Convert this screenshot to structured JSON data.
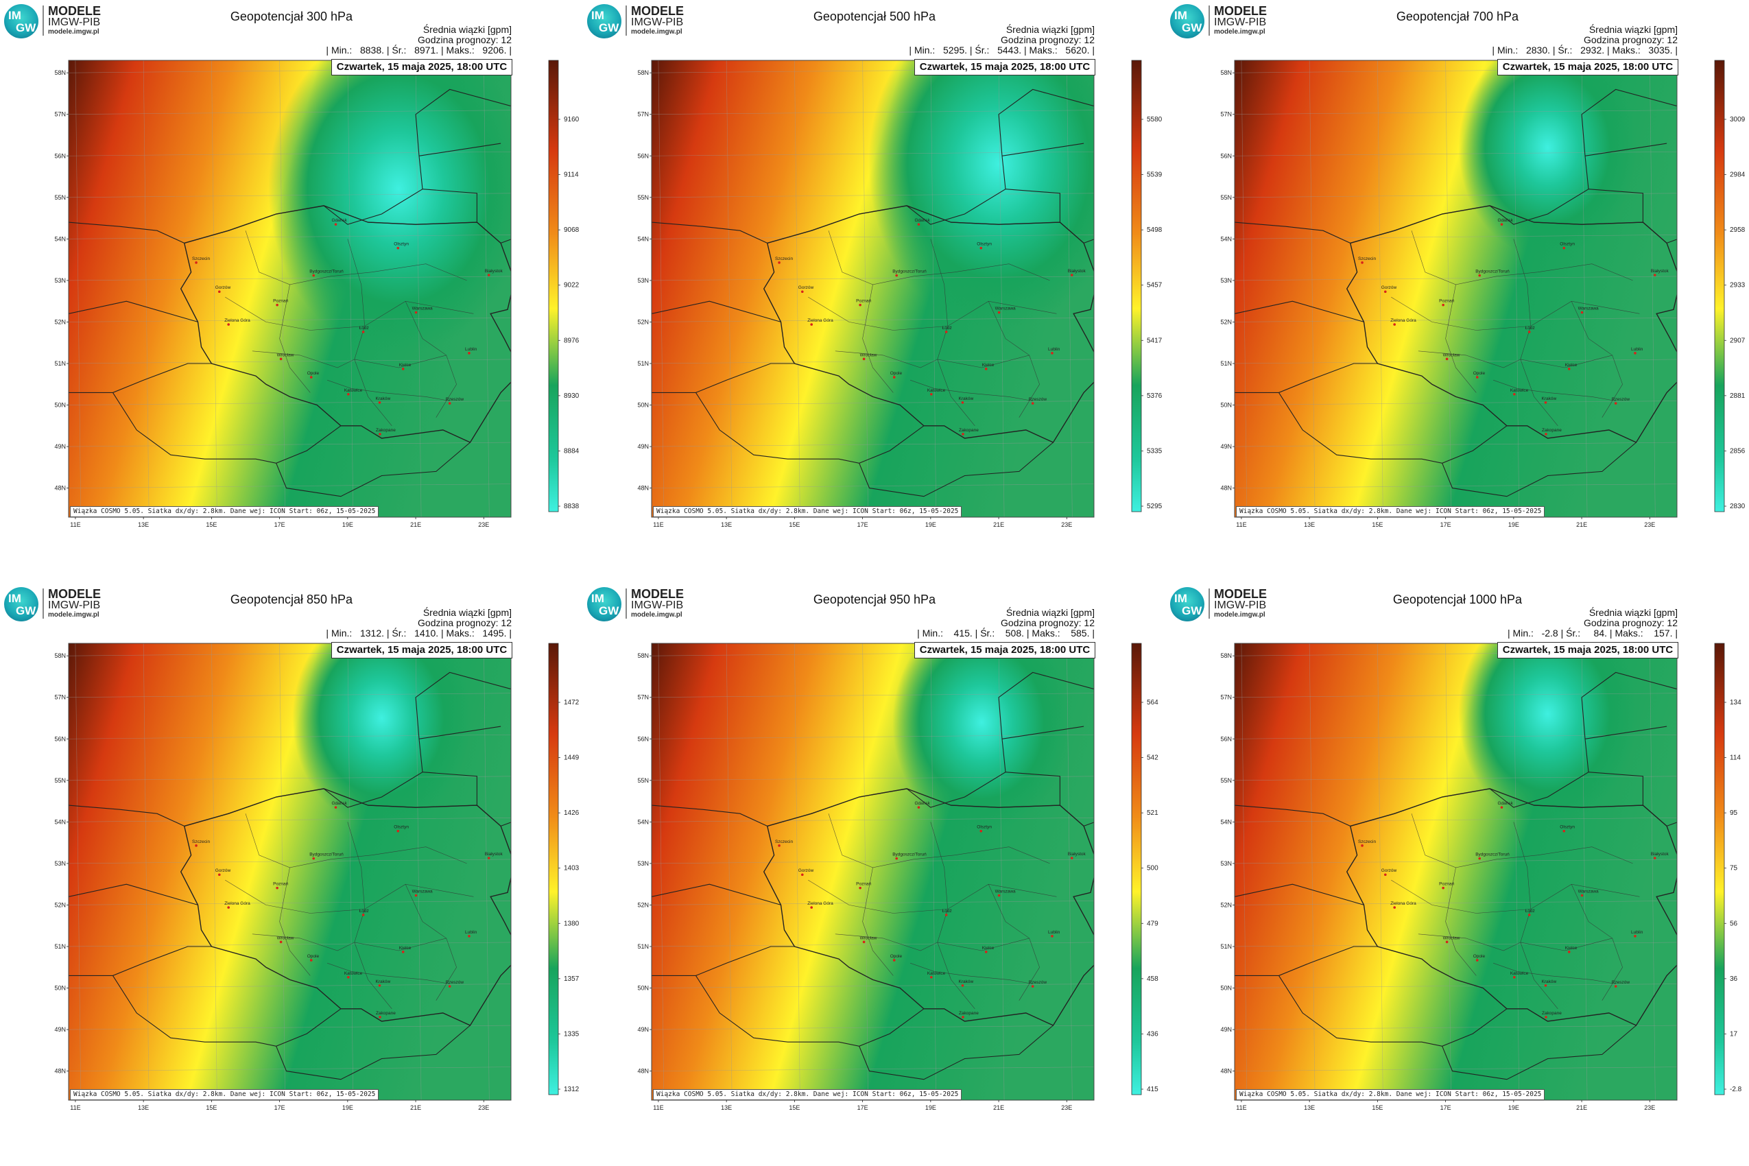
{
  "brand": {
    "name": "MODELE",
    "org": "IMGW-PIB",
    "url": "modele.imgw.pl",
    "logo_top": "IM",
    "logo_bottom": "GW"
  },
  "common": {
    "stat_title": "Średnia wiązki [gpm]",
    "forecast_hour": "Godzina prognozy: 12",
    "date": "Czwartek, 15 maja 2025, 18:00 UTC",
    "credit": "Wiązka COSMO 5.05. Siatka dx/dy: 2.8km. Dane wej: ICON Start: 06z, 15-05-2025"
  },
  "axes": {
    "lat_labels": [
      "58N",
      "57N",
      "56N",
      "55N",
      "54N",
      "53N",
      "52N",
      "51N",
      "50N",
      "49N",
      "48N"
    ],
    "lon_labels": [
      "11E",
      "13E",
      "15E",
      "17E",
      "19E",
      "21E",
      "23E"
    ]
  },
  "cities": [
    "Gdańsk",
    "Olsztyn",
    "Gorzów",
    "Białystok",
    "Szczecin",
    "Bydgoszcz/Toruń",
    "Poznań",
    "Warszawa",
    "Zielona Góra",
    "Łódź",
    "Lublin",
    "Wrocław",
    "Kielce",
    "Opole",
    "Katowice",
    "Kraków",
    "Rzeszów",
    "Zakopane"
  ],
  "colors": {
    "low": "#3ff0e0",
    "mid_green": "#18a45c",
    "yellow": "#fff22a",
    "orange": "#f08a18",
    "red": "#d63a10",
    "dark": "#5a1808",
    "border": "#222222",
    "contour": "#b8cc6a"
  },
  "panels": [
    {
      "title": "Geopotencjał 300 hPa",
      "stats": "| Min.:   8838. | Śr.:   8971. | Maks.:   9206. |",
      "colorbar": [
        "9160",
        "9114",
        "9068",
        "9022",
        "8976",
        "8930",
        "8884",
        "8838"
      ],
      "chart_data": {
        "type": "heatmap",
        "level_hPa": 300,
        "unit": "gpm",
        "min": 8838,
        "mean": 8971,
        "max": 9206,
        "low_center": {
          "lon": 20.5,
          "lat": 55.2
        }
      }
    },
    {
      "title": "Geopotencjał 500 hPa",
      "stats": "| Min.:   5295. | Śr.:   5443. | Maks.:   5620. |",
      "colorbar": [
        "5580",
        "5539",
        "5498",
        "5457",
        "5417",
        "5376",
        "5335",
        "5295"
      ],
      "chart_data": {
        "type": "heatmap",
        "level_hPa": 500,
        "unit": "gpm",
        "min": 5295,
        "mean": 5443,
        "max": 5620,
        "low_center": {
          "lon": 21.0,
          "lat": 55.8
        }
      }
    },
    {
      "title": "Geopotencjał 700 hPa",
      "stats": "| Min.:   2830. | Śr.:   2932. | Maks.:   3035. |",
      "colorbar": [
        "3009",
        "2984",
        "2958",
        "2933",
        "2907",
        "2881",
        "2856",
        "2830"
      ],
      "chart_data": {
        "type": "heatmap",
        "level_hPa": 700,
        "unit": "gpm",
        "min": 2830,
        "mean": 2932,
        "max": 3035,
        "low_center": {
          "lon": 20.0,
          "lat": 56.2
        }
      }
    },
    {
      "title": "Geopotencjał 850 hPa",
      "stats": "| Min.:   1312. | Śr.:   1410. | Maks.:   1495. |",
      "colorbar": [
        "1472",
        "1449",
        "1426",
        "1403",
        "1380",
        "1357",
        "1335",
        "1312"
      ],
      "chart_data": {
        "type": "heatmap",
        "level_hPa": 850,
        "unit": "gpm",
        "min": 1312,
        "mean": 1410,
        "max": 1495,
        "low_center": {
          "lon": 20.0,
          "lat": 56.5
        }
      }
    },
    {
      "title": "Geopotencjał 950 hPa",
      "stats": "| Min.:    415. | Śr.:    508. | Maks.:    585. |",
      "colorbar": [
        "564",
        "542",
        "521",
        "500",
        "479",
        "458",
        "436",
        "415"
      ],
      "chart_data": {
        "type": "heatmap",
        "level_hPa": 950,
        "unit": "gpm",
        "min": 415,
        "mean": 508,
        "max": 585,
        "low_center": {
          "lon": 20.5,
          "lat": 56.4
        }
      }
    },
    {
      "title": "Geopotencjał 1000 hPa",
      "stats": "| Min.:   -2.8 | Śr.:     84. | Maks.:    157. |",
      "colorbar": [
        "134",
        "114",
        "95",
        "75",
        "56",
        "36",
        "17",
        "-2.8"
      ],
      "chart_data": {
        "type": "heatmap",
        "level_hPa": 1000,
        "unit": "gpm",
        "min": -2.8,
        "mean": 84,
        "max": 157,
        "low_center": {
          "lon": 20.0,
          "lat": 56.6
        }
      }
    }
  ]
}
